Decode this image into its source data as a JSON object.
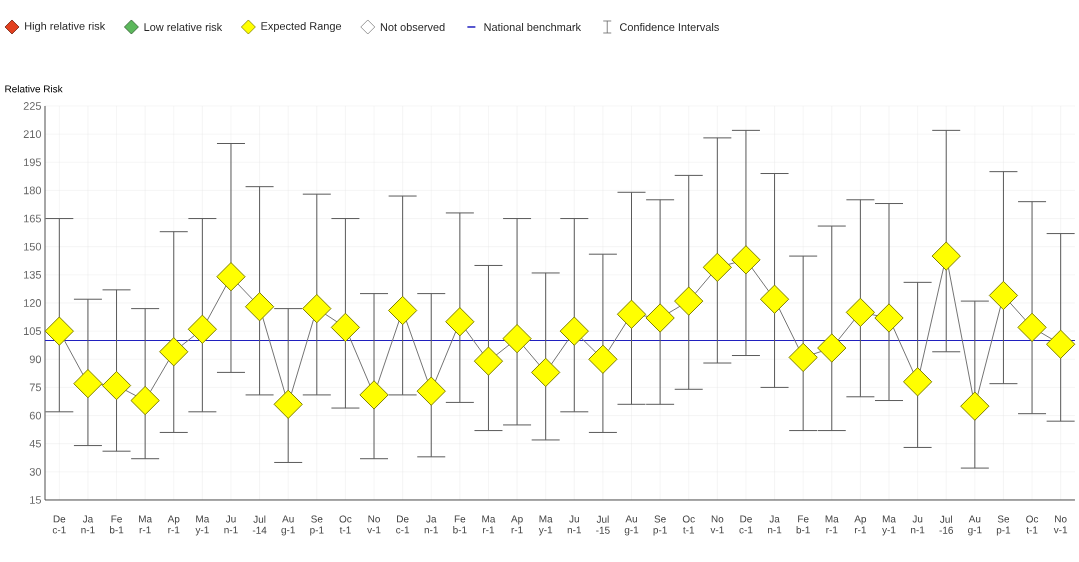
{
  "chart_data": {
    "type": "line",
    "ylabel": "Relative Risk",
    "categories": [
      "De c-1",
      "Ja n-1",
      "Fe b-1",
      "Ma r-1",
      "Ap r-1",
      "Ma y-1",
      "Ju n-1",
      "Jul -14",
      "Au g-1",
      "Se p-1",
      "Oc t-1",
      "No v-1",
      "De c-1",
      "Ja n-1",
      "Fe b-1",
      "Ma r-1",
      "Ap r-1",
      "Ma y-1",
      "Ju n-1",
      "Jul -15",
      "Au g-1",
      "Se p-1",
      "Oc t-1",
      "No v-1",
      "De c-1",
      "Ja n-1",
      "Fe b-1",
      "Ma r-1",
      "Ap r-1",
      "Ma y-1",
      "Ju n-1",
      "Jul -16",
      "Au g-1",
      "Se p-1",
      "Oc t-1",
      "No v-1"
    ],
    "series": [
      {
        "name": "High relative risk",
        "color": "#e2401f",
        "values": [
          null,
          null,
          null,
          null,
          null,
          null,
          null,
          null,
          null,
          null,
          null,
          null,
          null,
          null,
          null,
          null,
          null,
          null,
          null,
          null,
          null,
          null,
          null,
          null,
          null,
          null,
          null,
          null,
          null,
          null,
          null,
          null,
          null,
          null,
          null,
          null
        ]
      },
      {
        "name": "Low relative risk",
        "color": "#5cb85c",
        "values": [
          null,
          null,
          null,
          null,
          null,
          null,
          null,
          null,
          null,
          null,
          null,
          null,
          null,
          null,
          null,
          null,
          null,
          null,
          null,
          null,
          null,
          null,
          null,
          null,
          null,
          null,
          null,
          null,
          null,
          null,
          null,
          null,
          null,
          null,
          null,
          null
        ]
      },
      {
        "name": "Expected Range",
        "color": "#ffff00",
        "values": [
          105,
          77,
          76,
          68,
          94,
          106,
          134,
          118,
          66,
          117,
          107,
          71,
          116,
          73,
          110,
          89,
          101,
          83,
          105,
          90,
          114,
          112,
          121,
          139,
          143,
          122,
          91,
          96,
          115,
          112,
          78,
          145,
          65,
          124,
          107,
          98
        ],
        "errors": [
          [
            62,
            165
          ],
          [
            44,
            122
          ],
          [
            41,
            127
          ],
          [
            37,
            117
          ],
          [
            51,
            158
          ],
          [
            62,
            165
          ],
          [
            83,
            205
          ],
          [
            71,
            182
          ],
          [
            35,
            117
          ],
          [
            71,
            178
          ],
          [
            64,
            165
          ],
          [
            37,
            125
          ],
          [
            71,
            177
          ],
          [
            38,
            125
          ],
          [
            67,
            168
          ],
          [
            52,
            140
          ],
          [
            55,
            165
          ],
          [
            47,
            136
          ],
          [
            62,
            165
          ],
          [
            51,
            146
          ],
          [
            66,
            179
          ],
          [
            66,
            175
          ],
          [
            74,
            188
          ],
          [
            88,
            208
          ],
          [
            92,
            212
          ],
          [
            75,
            189
          ],
          [
            52,
            145
          ],
          [
            52,
            161
          ],
          [
            70,
            175
          ],
          [
            68,
            173
          ],
          [
            43,
            131
          ],
          [
            94,
            212
          ],
          [
            32,
            121
          ],
          [
            77,
            190
          ],
          [
            61,
            174
          ],
          [
            57,
            157
          ]
        ]
      },
      {
        "name": "Not observed",
        "color": "#ffffff",
        "values": [
          null,
          null,
          null,
          null,
          null,
          null,
          null,
          null,
          null,
          null,
          null,
          null,
          null,
          null,
          null,
          null,
          null,
          null,
          null,
          null,
          null,
          null,
          null,
          null,
          null,
          null,
          null,
          null,
          null,
          null,
          null,
          null,
          null,
          null,
          null,
          null
        ]
      }
    ],
    "ref_lines": [
      {
        "axis": "y",
        "value": 100,
        "label": "National benchmark",
        "color": "#1f1fbf"
      }
    ],
    "annotations": [
      "Confidence Intervals"
    ],
    "ylim": [
      15,
      225
    ],
    "yticks": [
      15,
      30,
      45,
      60,
      75,
      90,
      105,
      120,
      135,
      150,
      165,
      180,
      195,
      210,
      225
    ],
    "grid": true,
    "legend": "top",
    "marker": "diamond",
    "line_style": "solid"
  }
}
